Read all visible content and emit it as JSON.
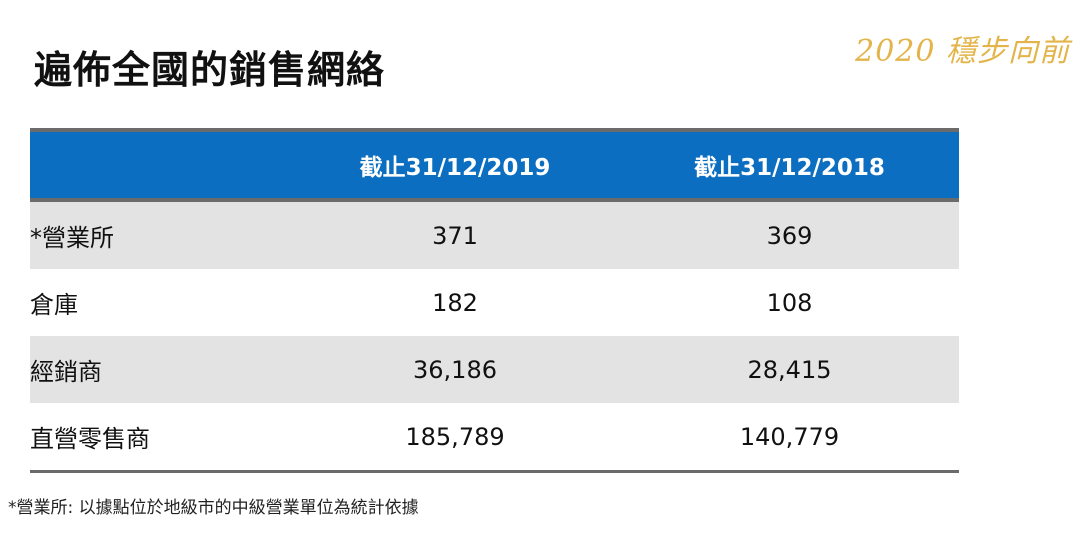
{
  "title": "遍佈全國的銷售網絡",
  "slogan": "2020 穩步向前",
  "table": {
    "headers": [
      "",
      "截止31/12/2019",
      "截止31/12/2018"
    ],
    "rows": [
      {
        "label": "*營業所",
        "v2019": "371",
        "v2018": "369"
      },
      {
        "label": "倉庫",
        "v2019": "182",
        "v2018": "108"
      },
      {
        "label": "經銷商",
        "v2019": "36,186",
        "v2018": "28,415"
      },
      {
        "label": "直營零售商",
        "v2019": "185,789",
        "v2018": "140,779"
      }
    ]
  },
  "footnote": "*營業所: 以據點位於地級市的中級營業單位為統計依據",
  "colors": {
    "header_background": "#0b6ec0",
    "shaded_row": "#e3e3e3",
    "slogan": "#e3b44a"
  }
}
